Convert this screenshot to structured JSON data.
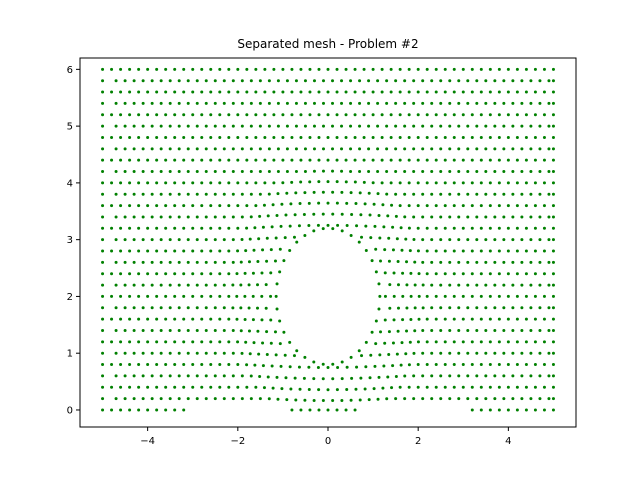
{
  "chart_data": {
    "type": "scatter",
    "title": "Separated mesh - Problem #2",
    "xlabel": "",
    "ylabel": "",
    "xlim": [
      -5.5,
      5.5
    ],
    "ylim": [
      -0.3,
      6.2
    ],
    "xticks": [
      -4,
      -2,
      0,
      2,
      4
    ],
    "yticks": [
      0,
      1,
      2,
      3,
      4,
      5,
      6
    ],
    "grid": false,
    "legend": "none",
    "marker_color": "#008000",
    "domain": {
      "x": [
        -5,
        5
      ],
      "y": [
        0,
        6
      ]
    },
    "hole": {
      "shape": "ellipse",
      "center": [
        0,
        2
      ],
      "rx": 1.15,
      "ry": 1.2
    },
    "node_spacing": {
      "dx": 0.2,
      "dy": 0.2
    },
    "bottom_gaps": [
      [
        -3.2,
        -0.8
      ],
      [
        0.8,
        3.2
      ]
    ]
  }
}
